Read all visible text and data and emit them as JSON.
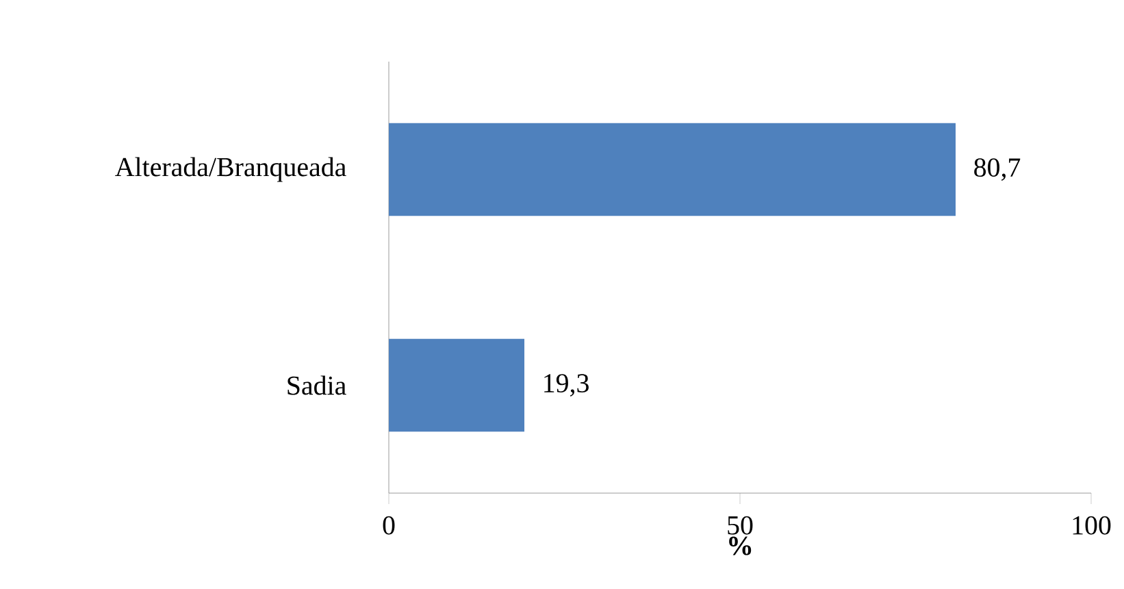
{
  "chart_data": {
    "type": "bar",
    "orientation": "horizontal",
    "xlabel": "%",
    "categories": [
      "Alterada/Branqueada",
      "Sadia"
    ],
    "values": [
      80.7,
      19.3
    ],
    "color": "#4f81bd",
    "value_labels": [
      "80,7",
      "19,3"
    ],
    "xlim": [
      0,
      100
    ],
    "xticks": [
      0,
      50,
      100
    ]
  }
}
